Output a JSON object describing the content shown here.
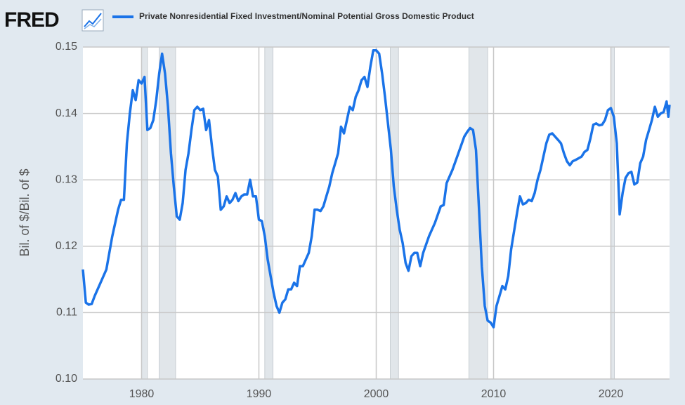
{
  "chart_data": {
    "type": "line",
    "logo": "FRED",
    "y_label": "Bil. of $/Bil. of $",
    "x": [
      1975.0,
      1975.25,
      1975.5,
      1975.75,
      1976.0,
      1976.5,
      1977.0,
      1977.5,
      1978.0,
      1978.25,
      1978.5,
      1978.75,
      1979.0,
      1979.25,
      1979.5,
      1979.75,
      1980.0,
      1980.25,
      1980.5,
      1980.75,
      1981.0,
      1981.25,
      1981.5,
      1981.75,
      1982.0,
      1982.25,
      1982.5,
      1982.75,
      1983.0,
      1983.25,
      1983.5,
      1983.75,
      1984.0,
      1984.25,
      1984.5,
      1984.75,
      1985.0,
      1985.25,
      1985.5,
      1985.75,
      1986.0,
      1986.25,
      1986.5,
      1986.75,
      1987.0,
      1987.25,
      1987.5,
      1987.75,
      1988.0,
      1988.25,
      1988.5,
      1988.75,
      1989.0,
      1989.25,
      1989.5,
      1989.75,
      1990.0,
      1990.25,
      1990.5,
      1990.75,
      1991.0,
      1991.25,
      1991.5,
      1991.75,
      1992.0,
      1992.25,
      1992.5,
      1992.75,
      1993.0,
      1993.25,
      1993.5,
      1993.75,
      1994.0,
      1994.25,
      1994.5,
      1994.75,
      1995.0,
      1995.25,
      1995.5,
      1995.75,
      1996.0,
      1996.25,
      1996.5,
      1996.75,
      1997.0,
      1997.25,
      1997.5,
      1997.75,
      1998.0,
      1998.25,
      1998.5,
      1998.75,
      1999.0,
      1999.25,
      1999.5,
      1999.75,
      2000.0,
      2000.25,
      2000.5,
      2000.75,
      2001.0,
      2001.25,
      2001.5,
      2001.75,
      2002.0,
      2002.25,
      2002.5,
      2002.75,
      2003.0,
      2003.25,
      2003.5,
      2003.75,
      2004.0,
      2004.5,
      2005.0,
      2005.5,
      2005.75,
      2006.0,
      2006.5,
      2007.0,
      2007.5,
      2007.75,
      2008.0,
      2008.25,
      2008.5,
      2008.75,
      2009.0,
      2009.25,
      2009.5,
      2009.75,
      2010.0,
      2010.25,
      2010.5,
      2010.75,
      2011.0,
      2011.25,
      2011.5,
      2012.0,
      2012.25,
      2012.5,
      2012.75,
      2013.0,
      2013.25,
      2013.5,
      2013.75,
      2014.0,
      2014.5,
      2014.75,
      2015.0,
      2015.5,
      2015.75,
      2016.0,
      2016.25,
      2016.5,
      2016.75,
      2017.0,
      2017.5,
      2017.75,
      2018.0,
      2018.25,
      2018.5,
      2018.75,
      2019.0,
      2019.25,
      2019.5,
      2019.75,
      2020.0,
      2020.25,
      2020.5,
      2020.75,
      2021.0,
      2021.25,
      2021.5,
      2021.75,
      2022.0,
      2022.25,
      2022.5,
      2022.75,
      2023.0,
      2023.25,
      2023.5,
      2023.75,
      2024.0,
      2024.25,
      2024.5,
      2024.75,
      2024.9,
      2025.0
    ],
    "series": [
      {
        "name": "Private Nonresidential Fixed Investment/Nominal Potential Gross Domestic Product",
        "color": "#1a73e8",
        "values": [
          0.1165,
          0.1115,
          0.1112,
          0.1113,
          0.1125,
          0.1145,
          0.1165,
          0.1215,
          0.1255,
          0.127,
          0.127,
          0.1355,
          0.14,
          0.1435,
          0.142,
          0.145,
          0.1445,
          0.1455,
          0.1375,
          0.1378,
          0.139,
          0.142,
          0.146,
          0.149,
          0.146,
          0.141,
          0.134,
          0.129,
          0.1245,
          0.124,
          0.1265,
          0.1315,
          0.134,
          0.1375,
          0.1405,
          0.141,
          0.1405,
          0.1407,
          0.1375,
          0.139,
          0.135,
          0.1315,
          0.1305,
          0.1255,
          0.126,
          0.1275,
          0.1265,
          0.127,
          0.128,
          0.1268,
          0.1275,
          0.1278,
          0.1278,
          0.13,
          0.1275,
          0.1275,
          0.124,
          0.1238,
          0.1215,
          0.118,
          0.1155,
          0.113,
          0.111,
          0.11,
          0.1115,
          0.112,
          0.1135,
          0.1135,
          0.1145,
          0.114,
          0.117,
          0.117,
          0.118,
          0.119,
          0.1215,
          0.1255,
          0.1255,
          0.1253,
          0.126,
          0.1275,
          0.129,
          0.131,
          0.1325,
          0.134,
          0.138,
          0.137,
          0.139,
          0.141,
          0.1405,
          0.1425,
          0.1435,
          0.145,
          0.1455,
          0.144,
          0.147,
          0.1495,
          0.1495,
          0.149,
          0.146,
          0.1425,
          0.1385,
          0.1345,
          0.129,
          0.1255,
          0.1225,
          0.1205,
          0.1175,
          0.1163,
          0.1185,
          0.119,
          0.119,
          0.117,
          0.119,
          0.1215,
          0.1235,
          0.126,
          0.1262,
          0.1295,
          0.1315,
          0.134,
          0.1365,
          0.1372,
          0.1378,
          0.1375,
          0.1345,
          0.126,
          0.117,
          0.111,
          0.1088,
          0.1085,
          0.1078,
          0.111,
          0.1125,
          0.114,
          0.1135,
          0.1155,
          0.1195,
          0.125,
          0.1275,
          0.1263,
          0.1265,
          0.127,
          0.1268,
          0.128,
          0.13,
          0.1315,
          0.1355,
          0.1368,
          0.137,
          0.136,
          0.1355,
          0.134,
          0.1328,
          0.1322,
          0.1328,
          0.133,
          0.1335,
          0.1342,
          0.1345,
          0.1362,
          0.1383,
          0.1385,
          0.1382,
          0.1383,
          0.139,
          0.1405,
          0.1408,
          0.1395,
          0.1355,
          0.1248,
          0.128,
          0.1303,
          0.131,
          0.1312,
          0.1293,
          0.1296,
          0.1325,
          0.1335,
          0.136,
          0.1375,
          0.139,
          0.141,
          0.1395,
          0.14,
          0.1402,
          0.1418,
          0.1395,
          0.1413
        ]
      }
    ],
    "recessions": [
      [
        1980.0,
        1980.5
      ],
      [
        1981.5,
        1982.9
      ],
      [
        1990.5,
        1991.2
      ],
      [
        2001.2,
        2001.9
      ],
      [
        2007.9,
        2009.5
      ],
      [
        2020.0,
        2020.3
      ]
    ],
    "recession_color": "#e1e6ea",
    "xlim": [
      1975,
      2025
    ],
    "xticks": [
      1980,
      1990,
      2000,
      2010,
      2020
    ],
    "ylim": [
      0.1,
      0.15
    ],
    "yticks": [
      {
        "value": 0.1,
        "label": "0.10"
      },
      0.11,
      0.12,
      0.13,
      0.14,
      0.15
    ],
    "grid": true
  }
}
